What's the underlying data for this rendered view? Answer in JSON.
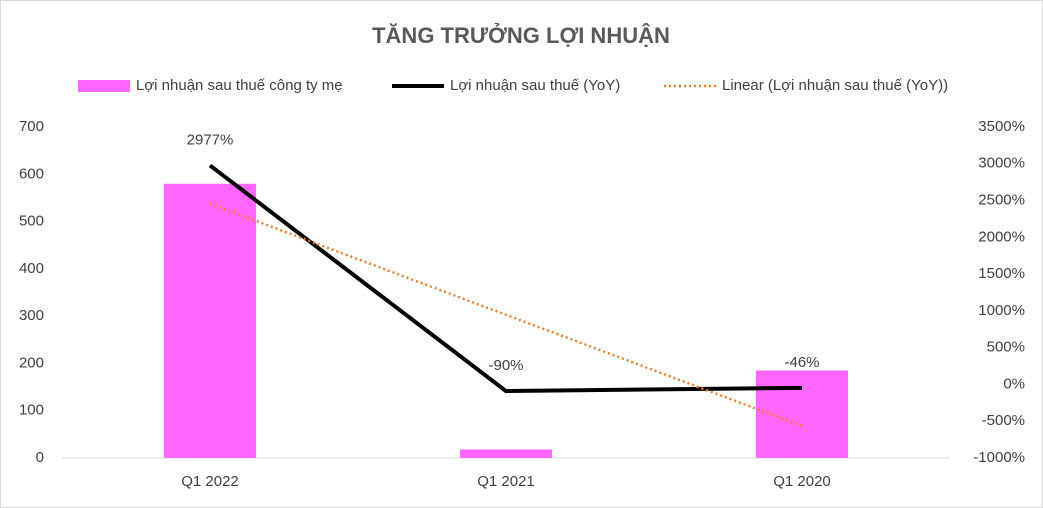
{
  "chart_data": {
    "type": "combo",
    "title": "TĂNG TRƯỞNG LỢI NHUẬN",
    "categories": [
      "Q1 2022",
      "Q1 2021",
      "Q1 2020"
    ],
    "series": [
      {
        "name": "Lợi nhuận sau thuế công ty mẹ",
        "type": "bar",
        "color": "#ff66ff",
        "values": [
          580,
          18,
          185
        ]
      },
      {
        "name": "Lợi nhuận sau thuế (YoY)",
        "type": "line",
        "axis": "y2",
        "color": "#000000",
        "values": [
          2977,
          -90,
          -46
        ],
        "value_labels": [
          "2977%",
          "-90%",
          "-46%"
        ]
      },
      {
        "name": "Linear (Lợi nhuận sau thuế (YoY))",
        "type": "line",
        "axis": "y2",
        "color": "#ed7d31",
        "dotted": true,
        "values": [
          2458.5,
          947,
          -564.5
        ]
      }
    ],
    "ylim": [
      0,
      700
    ],
    "yticks": [
      0,
      100,
      200,
      300,
      400,
      500,
      600,
      700
    ],
    "y2lim": [
      -1000,
      3500
    ],
    "y2ticks": [
      {
        "value": -1000,
        "label": "-1000%"
      },
      {
        "value": -500,
        "label": "-500%"
      },
      {
        "value": 0,
        "label": "0%"
      },
      {
        "value": 500,
        "label": "500%"
      },
      {
        "value": 1000,
        "label": "1000%"
      },
      {
        "value": 1500,
        "label": "1500%"
      },
      {
        "value": 2000,
        "label": "2000%"
      },
      {
        "value": 2500,
        "label": "2500%"
      },
      {
        "value": 3000,
        "label": "3000%"
      },
      {
        "value": 3500,
        "label": "3500%"
      }
    ],
    "grid": false,
    "legend": "top"
  }
}
